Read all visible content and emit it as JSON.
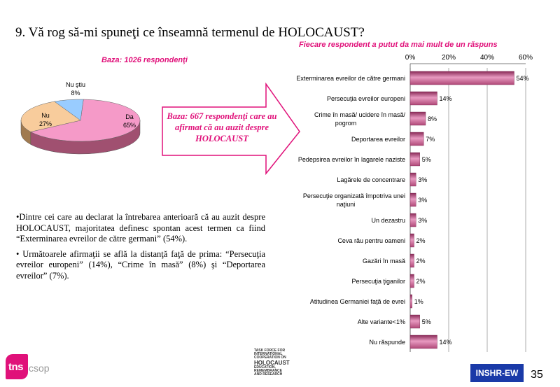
{
  "title": "9. Vă rog să-mi spuneţi ce înseamnă termenul de HOLOCAUST?",
  "note_right": "Fiecare respondent a putut da mai mult de un răspuns",
  "base_left": "Baza: 1026 respondenţi",
  "arrow_text": "Baza: 667 respondenţi care au afirmat că au auzit despre HOLOCAUST",
  "summary": [
    "•Dintre cei care au declarat la întrebarea anterioară că au auzit despre HOLOCAUST, majoritatea definesc spontan acest termen ca fiind “Exterminarea evreilor de către germani” (54%).",
    "• Următoarele afirmaţii se află la distanţă faţă de prima: “Persecuţia evreilor europeni” (14%), “Crime în masă” (8%) şi “Deportarea evreilor” (7%)."
  ],
  "logo_tns": "tns",
  "logo_csop": "csop",
  "taskforce_lines": [
    "TASK FORCE FOR",
    "INTERNATIONAL",
    "COOPERATION ON",
    "HOLOCAUST",
    "EDUCATION,",
    "REMEMBRANCE",
    "AND RESEARCH"
  ],
  "insh_label": "INSHR-EW",
  "page_number": "35",
  "colors": {
    "accent": "#e0117a",
    "bar": "#c0507a",
    "pie_da": "#f59ac8",
    "pie_nu": "#f8cc9c",
    "pie_nustiu": "#99ccff",
    "insh_bg": "#1a3aa8"
  },
  "chart_data": [
    {
      "type": "pie",
      "categories": [
        "Da",
        "Nu",
        "Nu ştiu"
      ],
      "values": [
        65,
        27,
        8
      ],
      "labels": [
        "Da\n65%",
        "Nu\n27%",
        "Nu ştiu\n8%"
      ],
      "title": "Baza: 1026 respondenţi"
    },
    {
      "type": "bar",
      "orientation": "horizontal",
      "categories": [
        "Exterminarea evreilor de către germani",
        "Persecuţia evreilor europeni",
        "Crime în masă/ ucidere în masă/ pogrom",
        "Deportarea evreilor",
        "Pedepsirea evreilor în lagarele naziste",
        "Lagărele de concentrare",
        "Persecuţie organizată împotriva unei naţiuni",
        "Un dezastru",
        "Ceva rău pentru oameni",
        "Gazări în masă",
        "Persecuţia ţiganilor",
        "Atitudinea Germaniei faţă de evrei",
        "Alte variante<1%",
        "Nu răspunde"
      ],
      "values": [
        54,
        14,
        8,
        7,
        5,
        3,
        3,
        3,
        2,
        2,
        2,
        1,
        5,
        14
      ],
      "value_labels": [
        "54%",
        "14%",
        "8%",
        "7%",
        "5%",
        "3%",
        "3%",
        "3%",
        "2%",
        "2%",
        "2%",
        "1%",
        "5%",
        "14%"
      ],
      "xlim": [
        0,
        60
      ],
      "xticks": [
        "0%",
        "20%",
        "40%",
        "60%"
      ],
      "grid": true
    }
  ]
}
